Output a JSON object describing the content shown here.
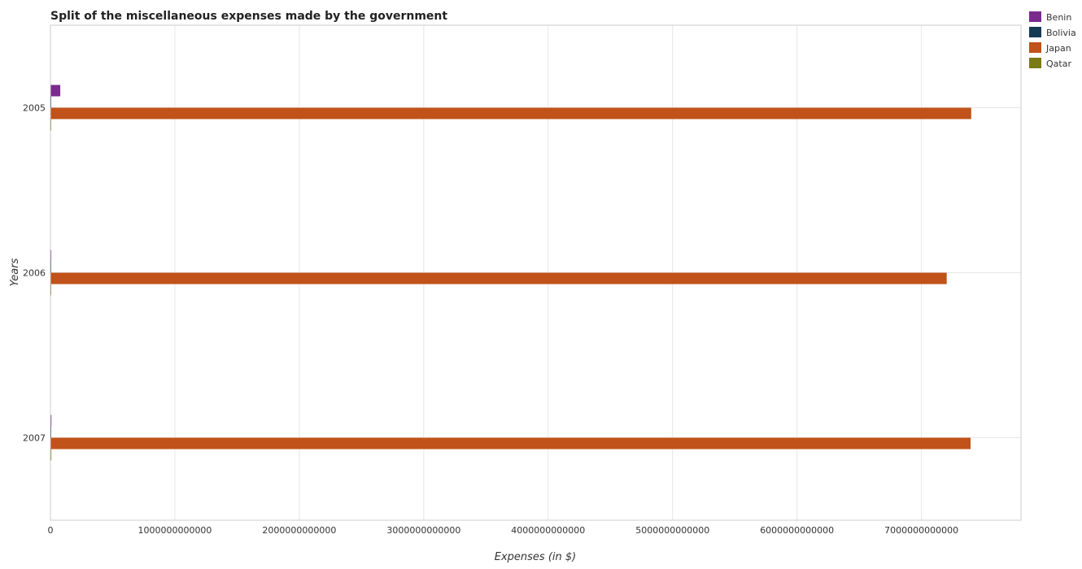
{
  "chart_data": {
    "type": "bar",
    "orientation": "horizontal",
    "title": "Split of the miscellaneous expenses made by the government",
    "xlabel": "Expenses (in $)",
    "ylabel": "Years",
    "categories": [
      "2005",
      "2006",
      "2007"
    ],
    "series": [
      {
        "name": "Benin",
        "color": "#7b2a8e",
        "values": [
          79000000000,
          7000000000,
          8000000000
        ]
      },
      {
        "name": "Bolivia",
        "color": "#153a56",
        "values": [
          1500000000,
          1200000000,
          1400000000
        ]
      },
      {
        "name": "Japan",
        "color": "#c0521a",
        "values": [
          7400000000000,
          7203000000000,
          7395000000000
        ]
      },
      {
        "name": "Qatar",
        "color": "#7a7a14",
        "values": [
          5000000000,
          6500000000,
          7500000000
        ]
      }
    ],
    "xlim": [
      0,
      7800000000000
    ],
    "xticks": [
      0,
      1000000000000,
      2000000000000,
      3000000000000,
      4000000000000,
      5000000000000,
      6000000000000,
      7000000000000
    ],
    "xtick_labels": [
      "0",
      "1000000000000",
      "2000000000000",
      "3000000000000",
      "4000000000000",
      "5000000000000",
      "6000000000000",
      "7000000000000"
    ],
    "grid": true,
    "legend_position": "top-right"
  }
}
